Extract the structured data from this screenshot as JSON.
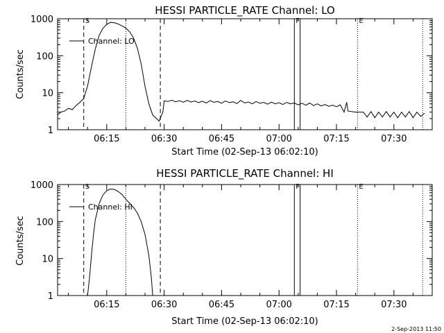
{
  "footer_stamp": "2-Sep-2013 11:50",
  "chart_data": [
    {
      "type": "line",
      "title": "HESSI PARTICLE_RATE Channel: LO",
      "ylabel": "Counts/sec",
      "xlabel": "Start Time (02-Sep-13 06:02:10)",
      "y_scale": "log",
      "ylim": [
        1,
        1000
      ],
      "xlim": [
        "06:02:10",
        "07:40:00"
      ],
      "y_ticks": [
        "1",
        "10",
        "100",
        "1000"
      ],
      "x_ticks": [
        "06:15",
        "06:30",
        "06:45",
        "07:00",
        "07:15",
        "07:30"
      ],
      "legend": {
        "label": "Channel: LO",
        "position": "top-left"
      },
      "markers": [
        {
          "label": "S",
          "time": "06:09:00",
          "style": "dashed"
        },
        {
          "label": "",
          "time": "06:20:00",
          "style": "dotted"
        },
        {
          "label": "",
          "time": "06:29:00",
          "style": "dashed"
        },
        {
          "label": "F",
          "time": "07:04:00",
          "style": "solid"
        },
        {
          "label": "",
          "time": "07:05:30",
          "style": "solid"
        },
        {
          "label": "E",
          "time": "07:20:30",
          "style": "dotted"
        },
        {
          "label": "",
          "time": "07:37:30",
          "style": "dotted"
        }
      ],
      "series": [
        {
          "points": [
            [
              "06:02:10",
              2.5
            ],
            [
              "06:03:00",
              3.0
            ],
            [
              "06:04:00",
              3.2
            ],
            [
              "06:05:00",
              3.8
            ],
            [
              "06:06:00",
              3.5
            ],
            [
              "06:07:00",
              4.5
            ],
            [
              "06:08:00",
              5.5
            ],
            [
              "06:09:00",
              7
            ],
            [
              "06:10:00",
              15
            ],
            [
              "06:11:00",
              50
            ],
            [
              "06:12:00",
              150
            ],
            [
              "06:13:00",
              350
            ],
            [
              "06:14:00",
              550
            ],
            [
              "06:15:00",
              700
            ],
            [
              "06:16:00",
              800
            ],
            [
              "06:17:00",
              780
            ],
            [
              "06:18:00",
              720
            ],
            [
              "06:19:00",
              640
            ],
            [
              "06:20:00",
              560
            ],
            [
              "06:21:00",
              440
            ],
            [
              "06:22:00",
              300
            ],
            [
              "06:23:00",
              160
            ],
            [
              "06:24:00",
              60
            ],
            [
              "06:25:00",
              15
            ],
            [
              "06:26:00",
              5
            ],
            [
              "06:27:00",
              2.5
            ],
            [
              "06:28:00",
              2.0
            ],
            [
              "06:28:40",
              1.7
            ],
            [
              "06:29:20",
              2.5
            ],
            [
              "06:29:40",
              3.0
            ],
            [
              "06:30:00",
              6.0
            ],
            [
              "06:31:00",
              5.8
            ],
            [
              "06:32:00",
              6.3
            ],
            [
              "06:33:00",
              5.7
            ],
            [
              "06:34:00",
              6.1
            ],
            [
              "06:35:00",
              5.5
            ],
            [
              "06:36:00",
              6.2
            ],
            [
              "06:37:00",
              5.6
            ],
            [
              "06:38:00",
              6.0
            ],
            [
              "06:39:00",
              5.4
            ],
            [
              "06:40:00",
              5.9
            ],
            [
              "06:41:00",
              5.3
            ],
            [
              "06:42:00",
              6.1
            ],
            [
              "06:43:00",
              5.5
            ],
            [
              "06:44:00",
              5.8
            ],
            [
              "06:45:00",
              5.2
            ],
            [
              "06:46:00",
              6.0
            ],
            [
              "06:47:00",
              5.4
            ],
            [
              "06:48:00",
              5.7
            ],
            [
              "06:49:00",
              5.1
            ],
            [
              "06:50:00",
              6.2
            ],
            [
              "06:51:00",
              5.3
            ],
            [
              "06:52:00",
              5.6
            ],
            [
              "06:53:00",
              5.0
            ],
            [
              "06:54:00",
              5.8
            ],
            [
              "06:55:00",
              5.2
            ],
            [
              "06:56:00",
              5.5
            ],
            [
              "06:57:00",
              4.9
            ],
            [
              "06:58:00",
              5.6
            ],
            [
              "06:59:00",
              5.0
            ],
            [
              "07:00:00",
              5.4
            ],
            [
              "07:01:00",
              4.8
            ],
            [
              "07:02:00",
              5.5
            ],
            [
              "07:03:00",
              5.0
            ],
            [
              "07:04:00",
              5.3
            ],
            [
              "07:05:00",
              4.7
            ],
            [
              "07:06:00",
              5.2
            ],
            [
              "07:07:00",
              4.6
            ],
            [
              "07:08:00",
              5.3
            ],
            [
              "07:09:00",
              4.5
            ],
            [
              "07:10:00",
              5.0
            ],
            [
              "07:11:00",
              4.4
            ],
            [
              "07:12:00",
              4.8
            ],
            [
              "07:13:00",
              4.3
            ],
            [
              "07:14:00",
              4.6
            ],
            [
              "07:15:00",
              4.2
            ],
            [
              "07:16:00",
              4.7
            ],
            [
              "07:17:00",
              3.0
            ],
            [
              "07:17:40",
              5.5
            ],
            [
              "07:18:00",
              3.2
            ],
            [
              "07:20:00",
              3.0
            ],
            [
              "07:22:00",
              3.0
            ],
            [
              "07:23:00",
              2.2
            ],
            [
              "07:24:00",
              3.1
            ],
            [
              "07:25:00",
              2.1
            ],
            [
              "07:26:00",
              3.0
            ],
            [
              "07:27:00",
              2.2
            ],
            [
              "07:28:00",
              3.1
            ],
            [
              "07:29:00",
              2.2
            ],
            [
              "07:30:00",
              3.0
            ],
            [
              "07:31:00",
              2.1
            ],
            [
              "07:32:00",
              3.0
            ],
            [
              "07:33:00",
              2.2
            ],
            [
              "07:34:00",
              3.1
            ],
            [
              "07:35:00",
              2.1
            ],
            [
              "07:36:00",
              3.0
            ],
            [
              "07:37:00",
              2.3
            ],
            [
              "07:38:00",
              2.8
            ]
          ]
        }
      ]
    },
    {
      "type": "line",
      "title": "HESSI PARTICLE_RATE Channel: HI",
      "ylabel": "Counts/sec",
      "xlabel": "Start Time (02-Sep-13 06:02:10)",
      "y_scale": "log",
      "ylim": [
        1,
        1000
      ],
      "xlim": [
        "06:02:10",
        "07:40:00"
      ],
      "y_ticks": [
        "1",
        "10",
        "100",
        "1000"
      ],
      "x_ticks": [
        "06:15",
        "06:30",
        "06:45",
        "07:00",
        "07:15",
        "07:30"
      ],
      "legend": {
        "label": "Channel: HI",
        "position": "top-left"
      },
      "markers": [
        {
          "label": "S",
          "time": "06:09:00",
          "style": "dashed"
        },
        {
          "label": "",
          "time": "06:20:00",
          "style": "dotted"
        },
        {
          "label": "",
          "time": "06:29:00",
          "style": "dashed"
        },
        {
          "label": "F",
          "time": "07:04:00",
          "style": "solid"
        },
        {
          "label": "",
          "time": "07:05:30",
          "style": "solid"
        },
        {
          "label": "E",
          "time": "07:20:30",
          "style": "dotted"
        },
        {
          "label": "",
          "time": "07:37:30",
          "style": "dotted"
        }
      ],
      "series": [
        {
          "points": [
            [
              "06:10:00",
              1.0
            ],
            [
              "06:10:30",
              3
            ],
            [
              "06:11:00",
              12
            ],
            [
              "06:11:30",
              40
            ],
            [
              "06:12:00",
              110
            ],
            [
              "06:13:00",
              300
            ],
            [
              "06:14:00",
              520
            ],
            [
              "06:15:00",
              680
            ],
            [
              "06:16:00",
              760
            ],
            [
              "06:17:00",
              740
            ],
            [
              "06:18:00",
              650
            ],
            [
              "06:19:00",
              540
            ],
            [
              "06:20:00",
              400
            ],
            [
              "06:21:00",
              310
            ],
            [
              "06:22:00",
              240
            ],
            [
              "06:23:00",
              170
            ],
            [
              "06:24:00",
              100
            ],
            [
              "06:25:00",
              45
            ],
            [
              "06:26:00",
              12
            ],
            [
              "06:26:40",
              3
            ],
            [
              "06:27:00",
              1.0
            ]
          ]
        }
      ]
    }
  ]
}
